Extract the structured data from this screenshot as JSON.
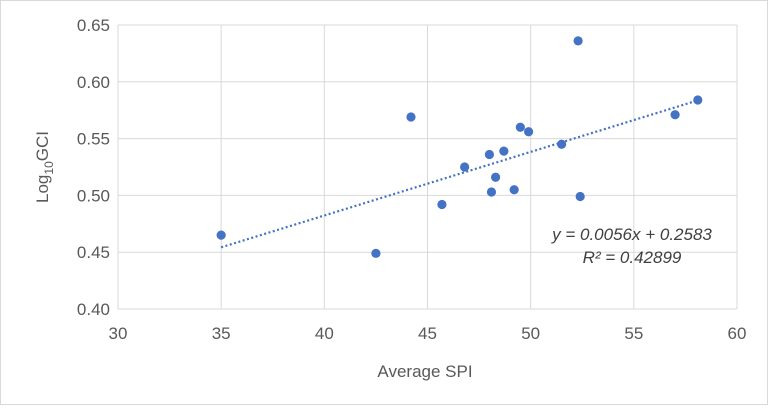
{
  "chart_data": {
    "type": "scatter",
    "xlabel": "Average SPI",
    "ylabel": {
      "prefix": "Log",
      "subscript": "10",
      "suffix": "GCI"
    },
    "xlim": [
      30,
      60
    ],
    "ylim": [
      0.4,
      0.65
    ],
    "x_ticks": [
      30,
      35,
      40,
      45,
      50,
      55,
      60
    ],
    "y_ticks": [
      0.4,
      0.45,
      0.5,
      0.55,
      0.6,
      0.65
    ],
    "x_tick_labels": [
      "30",
      "35",
      "40",
      "45",
      "50",
      "55",
      "60"
    ],
    "y_tick_labels": [
      "0.40",
      "0.45",
      "0.50",
      "0.55",
      "0.60",
      "0.65"
    ],
    "grid": true,
    "marker_color": "#4472c4",
    "points": [
      {
        "x": 35.0,
        "y": 0.465
      },
      {
        "x": 42.5,
        "y": 0.449
      },
      {
        "x": 44.2,
        "y": 0.569
      },
      {
        "x": 45.7,
        "y": 0.492
      },
      {
        "x": 46.8,
        "y": 0.525
      },
      {
        "x": 48.0,
        "y": 0.536
      },
      {
        "x": 48.1,
        "y": 0.503
      },
      {
        "x": 48.3,
        "y": 0.516
      },
      {
        "x": 48.7,
        "y": 0.539
      },
      {
        "x": 49.2,
        "y": 0.505
      },
      {
        "x": 49.5,
        "y": 0.56
      },
      {
        "x": 49.9,
        "y": 0.556
      },
      {
        "x": 51.5,
        "y": 0.545
      },
      {
        "x": 52.3,
        "y": 0.636
      },
      {
        "x": 52.4,
        "y": 0.499
      },
      {
        "x": 57.0,
        "y": 0.571
      },
      {
        "x": 58.1,
        "y": 0.584
      }
    ],
    "trendline": {
      "slope": 0.0056,
      "intercept": 0.2583,
      "x_range": [
        35.0,
        58.1
      ],
      "color": "#4472c4",
      "style": "dotted",
      "equation_label": "y = 0.0056x + 0.2583",
      "r2_label": "R² = 0.42899"
    }
  }
}
